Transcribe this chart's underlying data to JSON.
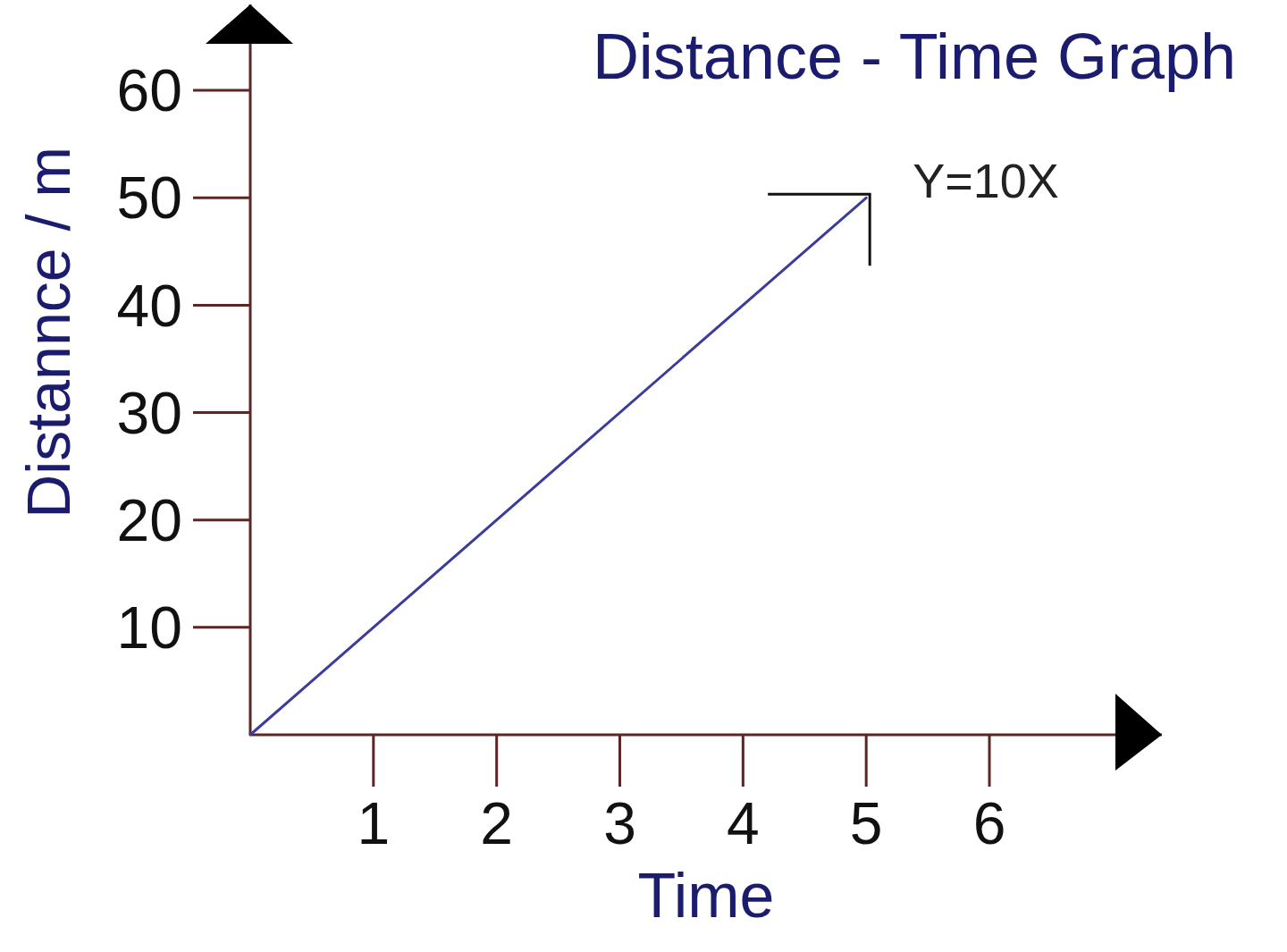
{
  "chart_data": {
    "type": "line",
    "title": "Distance - Time Graph",
    "xlabel": "Time",
    "ylabel": "Distannce / m",
    "x": [
      0,
      5
    ],
    "series": [
      {
        "color": "#3c3c9c",
        "values": [
          0,
          50
        ]
      }
    ],
    "xlim": [
      0,
      7.4
    ],
    "ylim": [
      0,
      68
    ],
    "xticks": [
      1,
      2,
      3,
      4,
      5,
      6
    ],
    "yticks": [
      10,
      20,
      30,
      40,
      50,
      60
    ],
    "line_style": "solid",
    "annotations": [
      {
        "text": "Y=10X",
        "x": 5,
        "y": 50
      }
    ]
  }
}
